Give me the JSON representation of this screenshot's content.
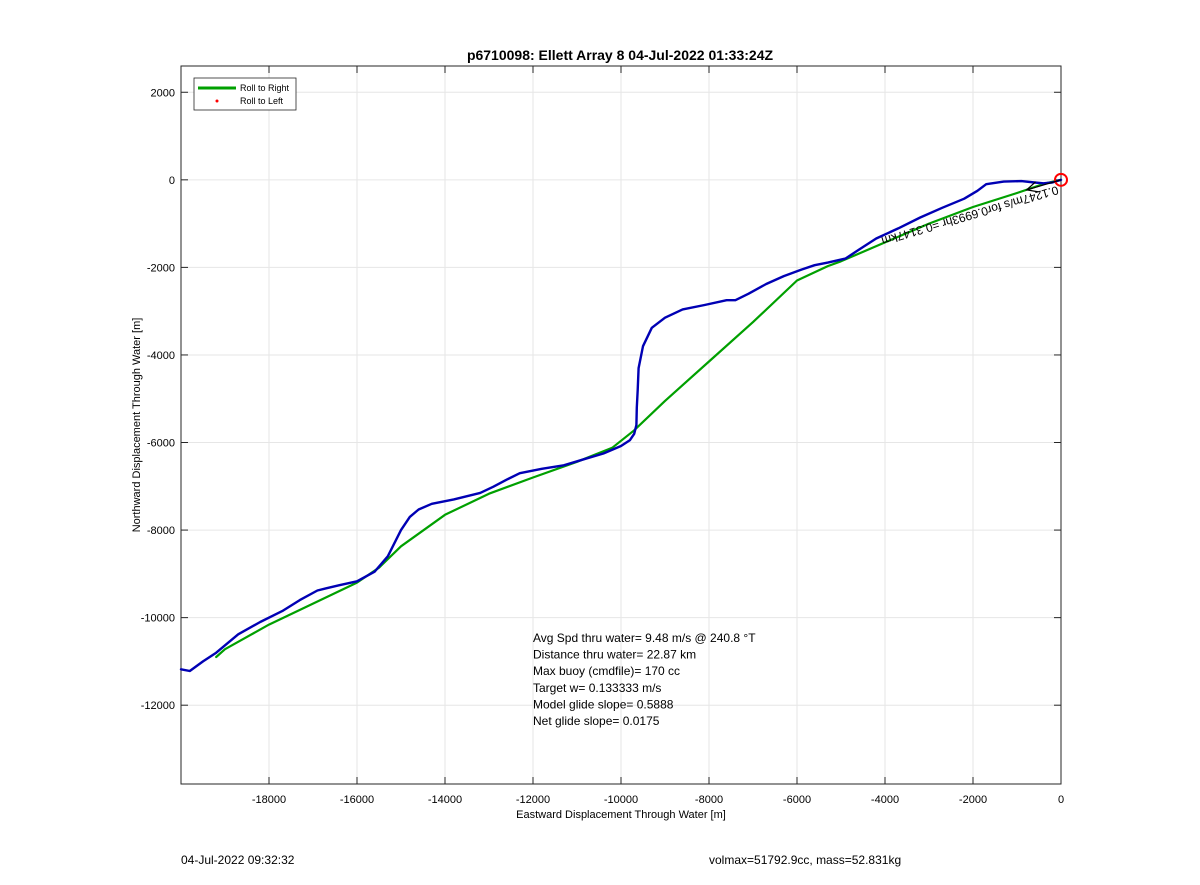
{
  "chart_data": {
    "type": "line",
    "title": "p6710098: Ellett Array 8 04-Jul-2022 01:33:24Z",
    "xlabel": "Eastward Displacement Through Water [m]",
    "ylabel": "Northward Displacement Through Water [m]",
    "xlim": [
      -20000,
      0
    ],
    "ylim": [
      -13800,
      2600
    ],
    "xticks": [
      -18000,
      -16000,
      -14000,
      -12000,
      -10000,
      -8000,
      -6000,
      -4000,
      -2000,
      0
    ],
    "yticks": [
      2000,
      0,
      -2000,
      -4000,
      -6000,
      -8000,
      -10000,
      -12000
    ],
    "xtick_labels": [
      "-18000",
      "-16000",
      "-14000",
      "-12000",
      "-10000",
      "-8000",
      "-6000",
      "-4000",
      "-2000",
      "0"
    ],
    "ytick_labels": [
      "2000",
      "0",
      "-2000",
      "-4000",
      "-6000",
      "-8000",
      "-10000",
      "-12000"
    ],
    "grid": true,
    "legend_position": "top-left",
    "series": [
      {
        "name": "Roll to Right",
        "color": "#00a000",
        "x": [
          0,
          -350,
          -1000,
          -2000,
          -3000,
          -4000,
          -5000,
          -5300,
          -6000,
          -7000,
          -8000,
          -9000,
          -9700,
          -10200,
          -11000,
          -12000,
          -13000,
          -14000,
          -15000,
          -15500,
          -16000,
          -17000,
          -18000,
          -19000,
          -19200
        ],
        "y": [
          0,
          -80,
          -300,
          -620,
          -1000,
          -1430,
          -1860,
          -1970,
          -2300,
          -3250,
          -4150,
          -5050,
          -5720,
          -6120,
          -6440,
          -6800,
          -7170,
          -7650,
          -8370,
          -8860,
          -9200,
          -9680,
          -10160,
          -10720,
          -10900
        ]
      },
      {
        "name": "Roll to Left",
        "color": "#ff0000",
        "x": [],
        "y": []
      },
      {
        "name": "",
        "color": "#0000b4",
        "x": [
          0,
          -200,
          -400,
          -600,
          -900,
          -1300,
          -1700,
          -1900,
          -2200,
          -2700,
          -3200,
          -3700,
          -4200,
          -4600,
          -4900,
          -5300,
          -5600,
          -5900,
          -6300,
          -6700,
          -7100,
          -7400,
          -7600,
          -8100,
          -8600,
          -9000,
          -9300,
          -9500,
          -9600,
          -9620,
          -9640,
          -9650,
          -9700,
          -9800,
          -10000,
          -10400,
          -10800,
          -11300,
          -11800,
          -12300,
          -12600,
          -12900,
          -13200,
          -13800,
          -14300,
          -14600,
          -14800,
          -15000,
          -15300,
          -15600,
          -16000,
          -16400,
          -16700,
          -16900,
          -17300,
          -17700,
          -18200,
          -18700,
          -19200,
          -19500,
          -19800,
          -20000
        ],
        "y": [
          0,
          -60,
          -80,
          -60,
          -30,
          -40,
          -100,
          -250,
          -430,
          -640,
          -860,
          -1110,
          -1340,
          -1600,
          -1800,
          -1890,
          -1950,
          -2050,
          -2200,
          -2380,
          -2600,
          -2750,
          -2750,
          -2860,
          -2960,
          -3150,
          -3380,
          -3800,
          -4300,
          -4800,
          -5200,
          -5600,
          -5800,
          -5950,
          -6080,
          -6250,
          -6370,
          -6520,
          -6600,
          -6700,
          -6850,
          -7010,
          -7150,
          -7300,
          -7400,
          -7530,
          -7700,
          -8000,
          -8600,
          -8950,
          -9170,
          -9260,
          -9330,
          -9380,
          -9600,
          -9850,
          -10100,
          -10380,
          -10800,
          -11000,
          -11220,
          -11180
        ]
      }
    ],
    "markers": {
      "start_marker": {
        "x": 0,
        "y": 0,
        "color": "#ff0000"
      },
      "current_arrow": {
        "x": 0,
        "y": 0,
        "color": "#000000",
        "dir_x": -780,
        "dir_y": -230
      }
    },
    "current_label": "0.1247m/s for0.6993hr =0.3147km",
    "annotations": [
      "Avg Spd thru water=  9.48 m/s @ 240.8 °T",
      "Distance thru water= 22.87 km",
      "Max buoy (cmdfile)= 170 cc",
      "Target w= 0.133333 m/s",
      "Model glide slope= 0.5888",
      "Net glide slope= 0.0175"
    ]
  },
  "footer": {
    "left": "04-Jul-2022 09:32:32",
    "right": "volmax=51792.9cc, mass=52.831kg"
  }
}
